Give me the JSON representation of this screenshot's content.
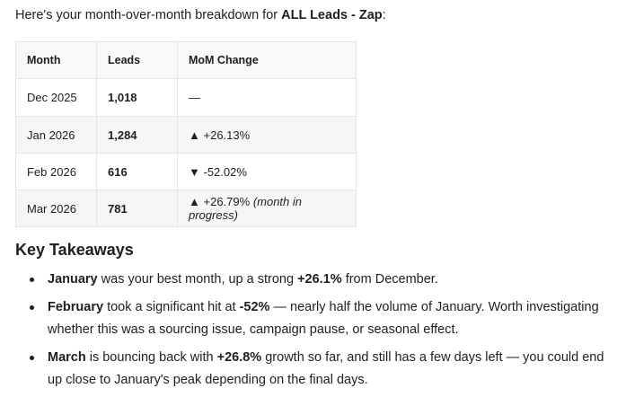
{
  "intro": {
    "prefix": "Here's your month-over-month breakdown for ",
    "name": "ALL Leads - Zap",
    "suffix": ":"
  },
  "table": {
    "headers": [
      "Month",
      "Leads",
      "MoM Change"
    ],
    "rows": [
      {
        "month": "Dec 2025",
        "leads": "1,018",
        "arrow": "",
        "change": "—",
        "note": ""
      },
      {
        "month": "Jan 2026",
        "leads": "1,284",
        "arrow": "▲",
        "change": "+26.13%",
        "note": ""
      },
      {
        "month": "Feb 2026",
        "leads": "616",
        "arrow": "▼",
        "change": "-52.02%",
        "note": ""
      },
      {
        "month": "Mar 2026",
        "leads": "781",
        "arrow": "▲",
        "change": "+26.79%",
        "note": "(month in progress)"
      }
    ]
  },
  "takeaways": {
    "heading": "Key Takeaways",
    "items": [
      {
        "b1": "January",
        "t1": " was your best month, up a strong ",
        "b2": "+26.1%",
        "t2": " from December."
      },
      {
        "b1": "February",
        "t1": " took a significant hit at ",
        "b2": "-52%",
        "t2": " — nearly half the volume of January. Worth investigating whether this was a sourcing issue, campaign pause, or seasonal effect."
      },
      {
        "b1": "March",
        "t1": " is bouncing back with ",
        "b2": "+26.8%",
        "t2": " growth so far, and still has a few days left — you could end up close to January's peak depending on the final days."
      }
    ]
  }
}
